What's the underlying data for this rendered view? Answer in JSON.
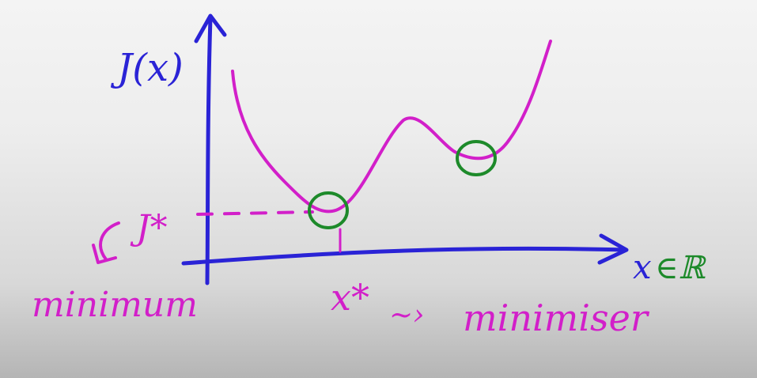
{
  "labels": {
    "y_axis": "J(x)",
    "x_axis_var": "x",
    "x_axis_set": "∈ℝ",
    "y_min": "J*",
    "x_min": "x*",
    "min_word_left": "minimum",
    "tilde": "~›",
    "min_word_right": "minimiser"
  },
  "colors": {
    "axes": "#2a23d6",
    "curve": "#d21fc9",
    "circles": "#1d8a2a",
    "annotation": "#d21fc9",
    "set_symbol": "#1d8a2a"
  }
}
